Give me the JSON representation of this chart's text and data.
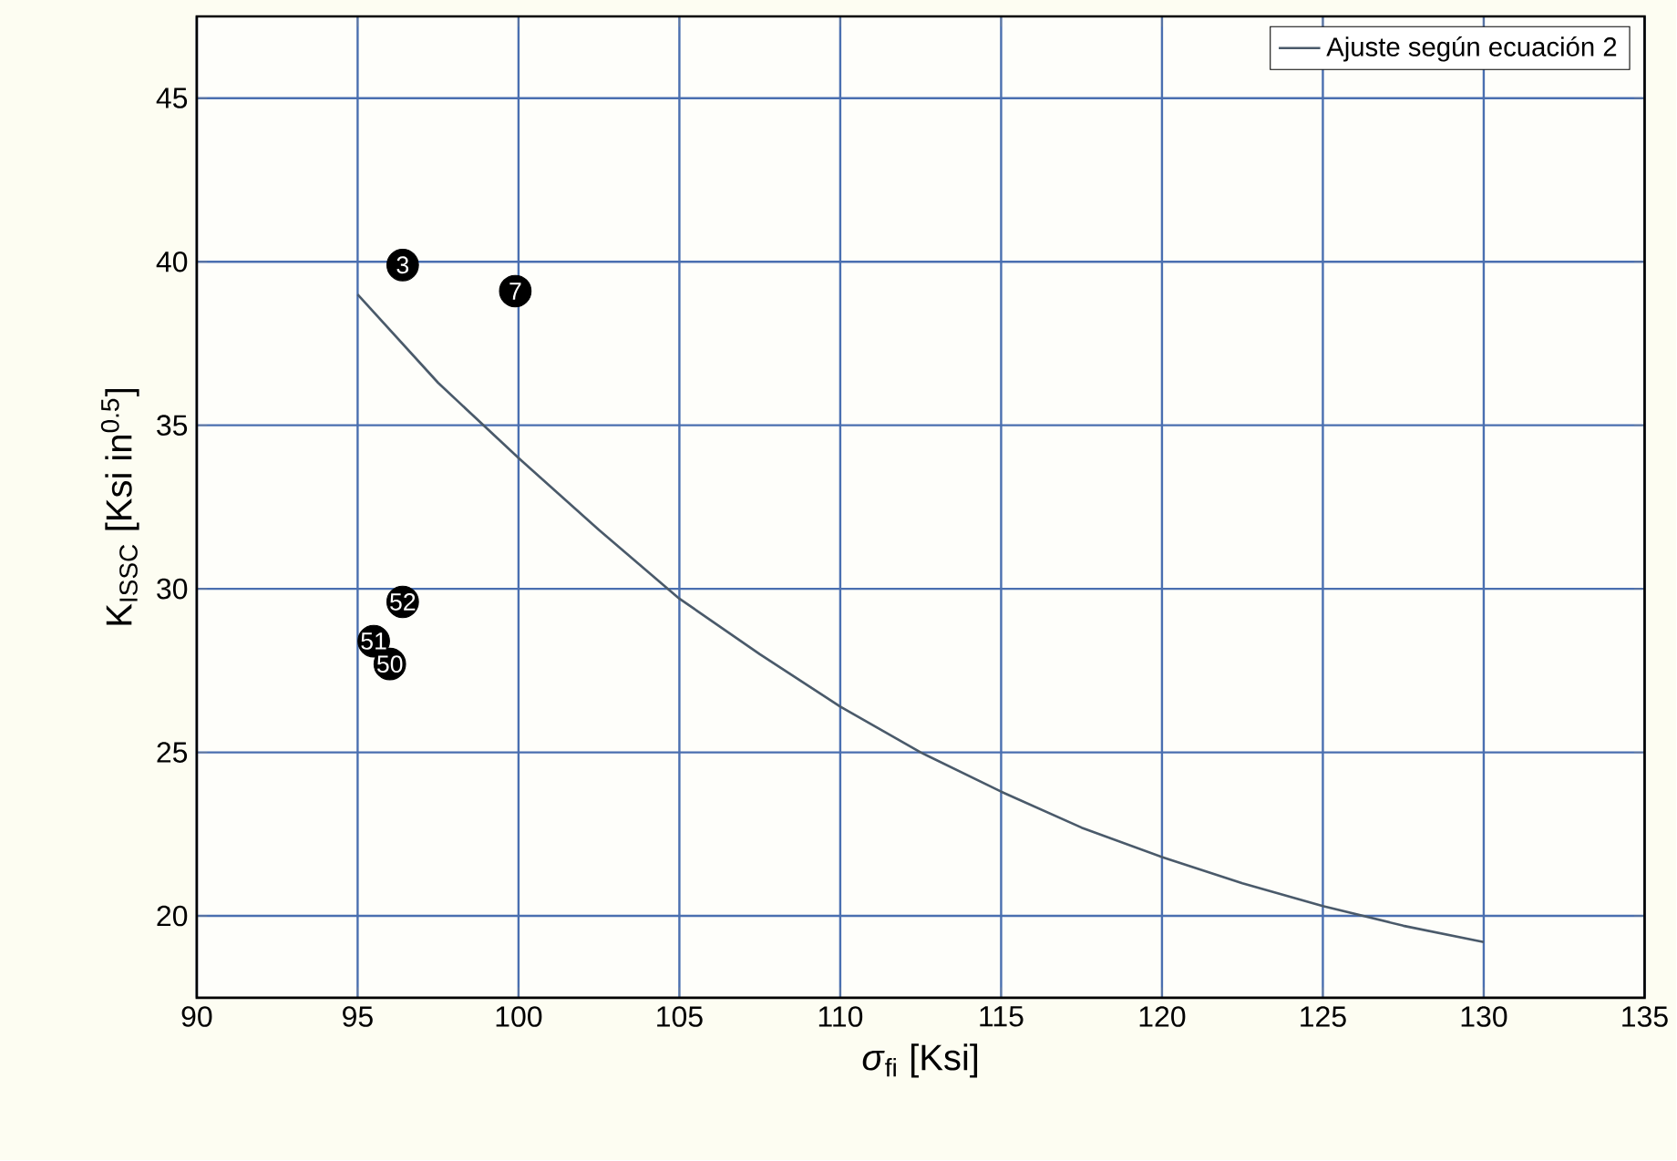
{
  "chart_data": {
    "type": "scatter",
    "xlabel": "*σ*$_{fi}$ [Ksi]",
    "ylabel": "K$_{ISSC}$ [Ksi in$^{0.5}$]",
    "xlim": [
      90,
      135
    ],
    "ylim": [
      17.5,
      47.5
    ],
    "xticks": [
      90,
      95,
      100,
      105,
      110,
      115,
      120,
      125,
      130,
      135
    ],
    "yticks": [
      20,
      25,
      30,
      35,
      40,
      45
    ],
    "grid": true,
    "legend": "top right",
    "annotations": [
      {
        "text": "3",
        "x": 96.4,
        "y": 39.9
      },
      {
        "text": "7",
        "x": 99.9,
        "y": 39.1
      },
      {
        "text": "52",
        "x": 96.4,
        "y": 29.6
      },
      {
        "text": "51",
        "x": 95.5,
        "y": 28.4
      },
      {
        "text": "50",
        "x": 96.0,
        "y": 27.7
      }
    ],
    "series": [
      {
        "color": "#000000",
        "marker": "circle",
        "x": [
          96.4,
          99.9,
          96.4,
          95.5,
          96.0
        ],
        "values": [
          39.9,
          39.1,
          29.6,
          28.4,
          27.7
        ]
      },
      {
        "type": "line",
        "name": "Ajuste según ecuación 2",
        "color": "#4a5a6a",
        "line_style": "solid",
        "marker": "none",
        "x": [
          95,
          97.5,
          100,
          102.5,
          105,
          107.5,
          110,
          112.5,
          115,
          117.5,
          120,
          122.5,
          125,
          127.5,
          130
        ],
        "values": [
          39.0,
          36.3,
          34.0,
          31.8,
          29.7,
          28.0,
          26.4,
          25.0,
          23.8,
          22.7,
          21.8,
          21.0,
          20.3,
          19.7,
          19.2
        ]
      }
    ]
  }
}
